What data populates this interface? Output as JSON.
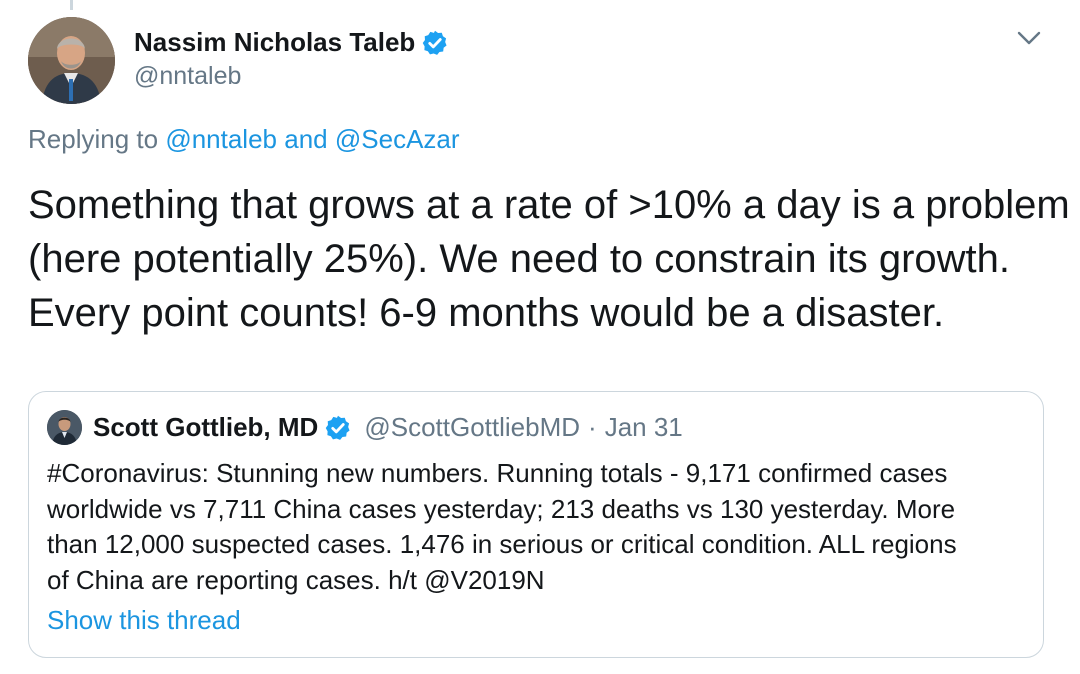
{
  "tweet": {
    "author": {
      "name": "Nassim Nicholas Taleb",
      "handle": "@nntaleb",
      "avatar_icon": "profile-photo",
      "verified_color": "#1da1f2"
    },
    "reply": {
      "prefix": "Replying to",
      "mention1": "@nntaleb",
      "conjunction": "and",
      "mention2": "@SecAzar"
    },
    "text_lines": [
      "Something that grows at a rate of >10% a day is a problem",
      "(here potentially 25%). We need to constrain its growth.",
      "Every point counts!  6-9 months would be a disaster."
    ]
  },
  "quote": {
    "author": {
      "name": "Scott Gottlieb, MD",
      "handle": "@ScottGottliebMD",
      "separator": "·",
      "date": "Jan 31"
    },
    "body_lines": [
      "#Coronavirus: Stunning new numbers. Running totals - 9,171 confirmed cases",
      "worldwide vs 7,711 China cases yesterday; 213 deaths vs 130 yesterday. More",
      "than 12,000 suspected cases.  1,476 in serious or critical condition. ALL regions",
      "of China are reporting cases. h/t @V2019N"
    ],
    "thread_link": "Show this thread"
  },
  "colors": {
    "link": "#1b95e0",
    "secondary": "#657786",
    "border": "#ccd6dd"
  }
}
